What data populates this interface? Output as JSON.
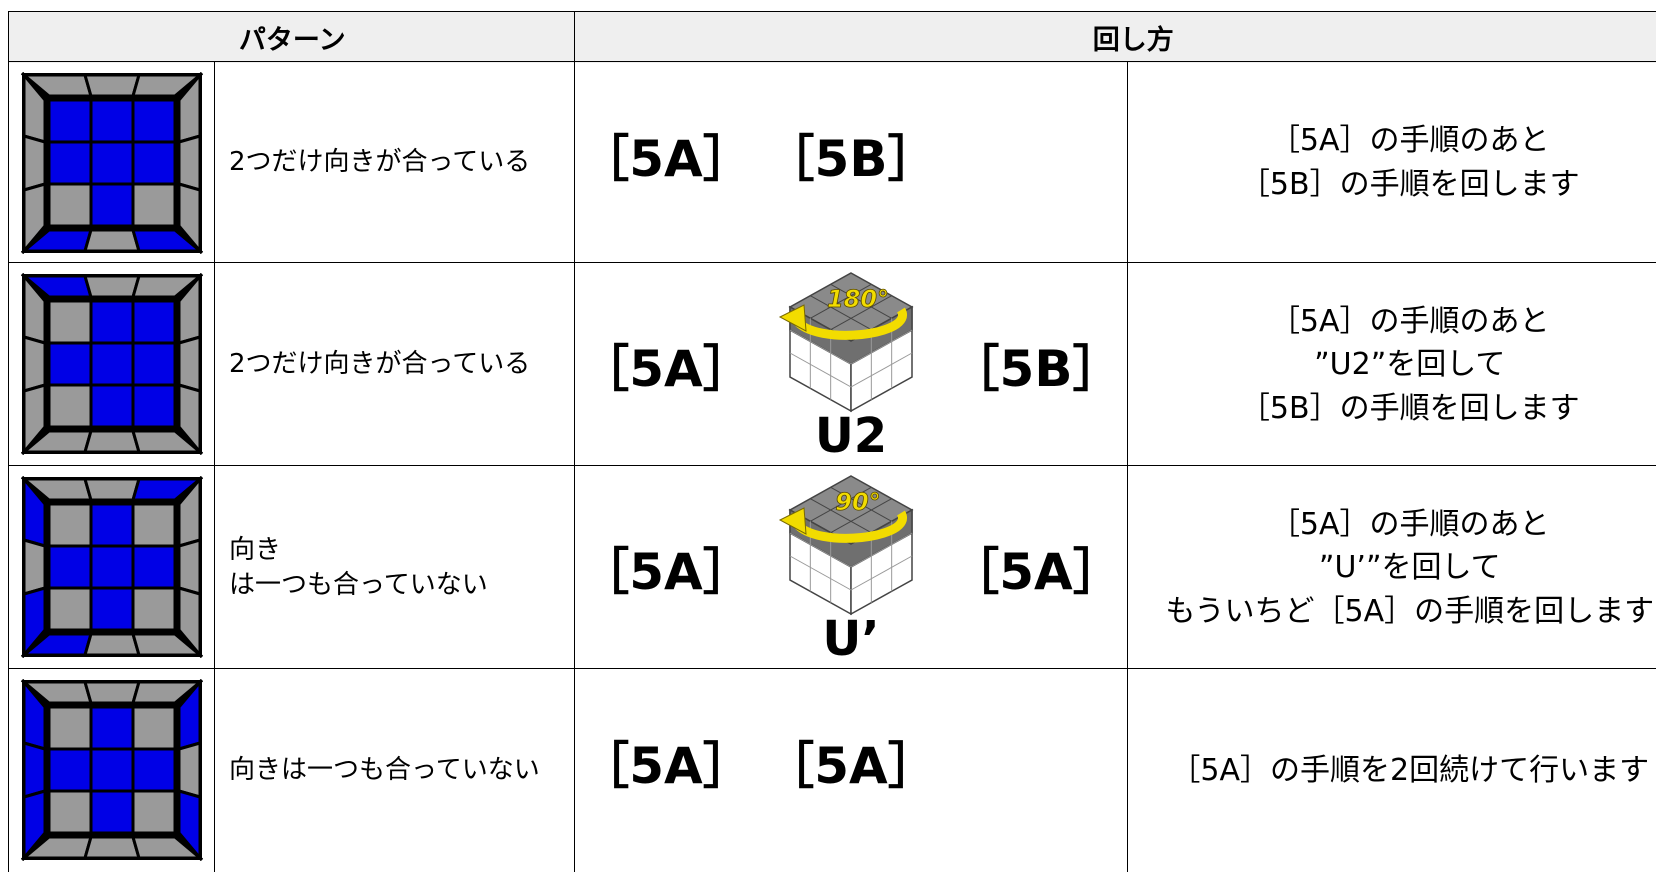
{
  "header": {
    "pattern": "パターン",
    "method": "回し方"
  },
  "rows": [
    {
      "pattern": [
        "2つだけ向きが合っている"
      ],
      "moves": [
        "［5A］",
        "［5B］"
      ],
      "description": [
        "［5A］の手順のあと",
        "［5B］の手順を回します"
      ]
    },
    {
      "pattern": [
        "2つだけ向きが合っている"
      ],
      "moves": [
        "［5A］",
        "［5B］"
      ],
      "turn": {
        "angle": "180°",
        "label": "U2"
      },
      "description": [
        "［5A］の手順のあと",
        "”U2”を回して",
        "［5B］の手順を回します"
      ]
    },
    {
      "pattern": [
        "向き",
        "は一つも合っていない"
      ],
      "moves": [
        "［5A］",
        "［5A］"
      ],
      "turn": {
        "angle": "90°",
        "label": "U’"
      },
      "description": [
        "［5A］の手順のあと",
        "”U’”を回して",
        "もういちど［5A］の手順を回します"
      ]
    },
    {
      "pattern": [
        "向きは一つも合っていない"
      ],
      "moves": [
        "［5A］",
        "［5A］"
      ],
      "description": [
        "［5A］の手順を2回続けて行います"
      ]
    }
  ]
}
